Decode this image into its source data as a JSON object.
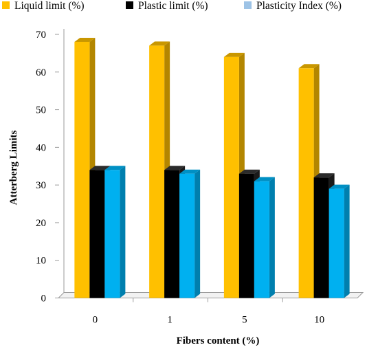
{
  "chart_data": {
    "type": "bar",
    "style": "3d-clustered",
    "categories": [
      "0",
      "1",
      "5",
      "10"
    ],
    "series": [
      {
        "name": "Liquid limit (%)",
        "values": [
          68,
          67,
          64,
          61
        ],
        "color": "#FFC000",
        "side": "#B38600",
        "top": "#C99700"
      },
      {
        "name": "Plastic limit (%)",
        "values": [
          34,
          34,
          33,
          32
        ],
        "color": "#000000",
        "side": "#1a1a1a",
        "top": "#2b2b2b"
      },
      {
        "name": "Plasticity Index (%)",
        "values": [
          34,
          33,
          31,
          29
        ],
        "color": "#00B0F0",
        "side": "#007FAE",
        "top": "#0090C4",
        "legend_color": "#9DC3E6"
      }
    ],
    "xlabel": "Fibers content (%)",
    "ylabel": "Atterberg Limits",
    "ylim": [
      0,
      70
    ],
    "yticks": [
      "0",
      "10",
      "20",
      "30",
      "40",
      "50",
      "60",
      "70"
    ],
    "grid": false,
    "legend_position": "top"
  }
}
